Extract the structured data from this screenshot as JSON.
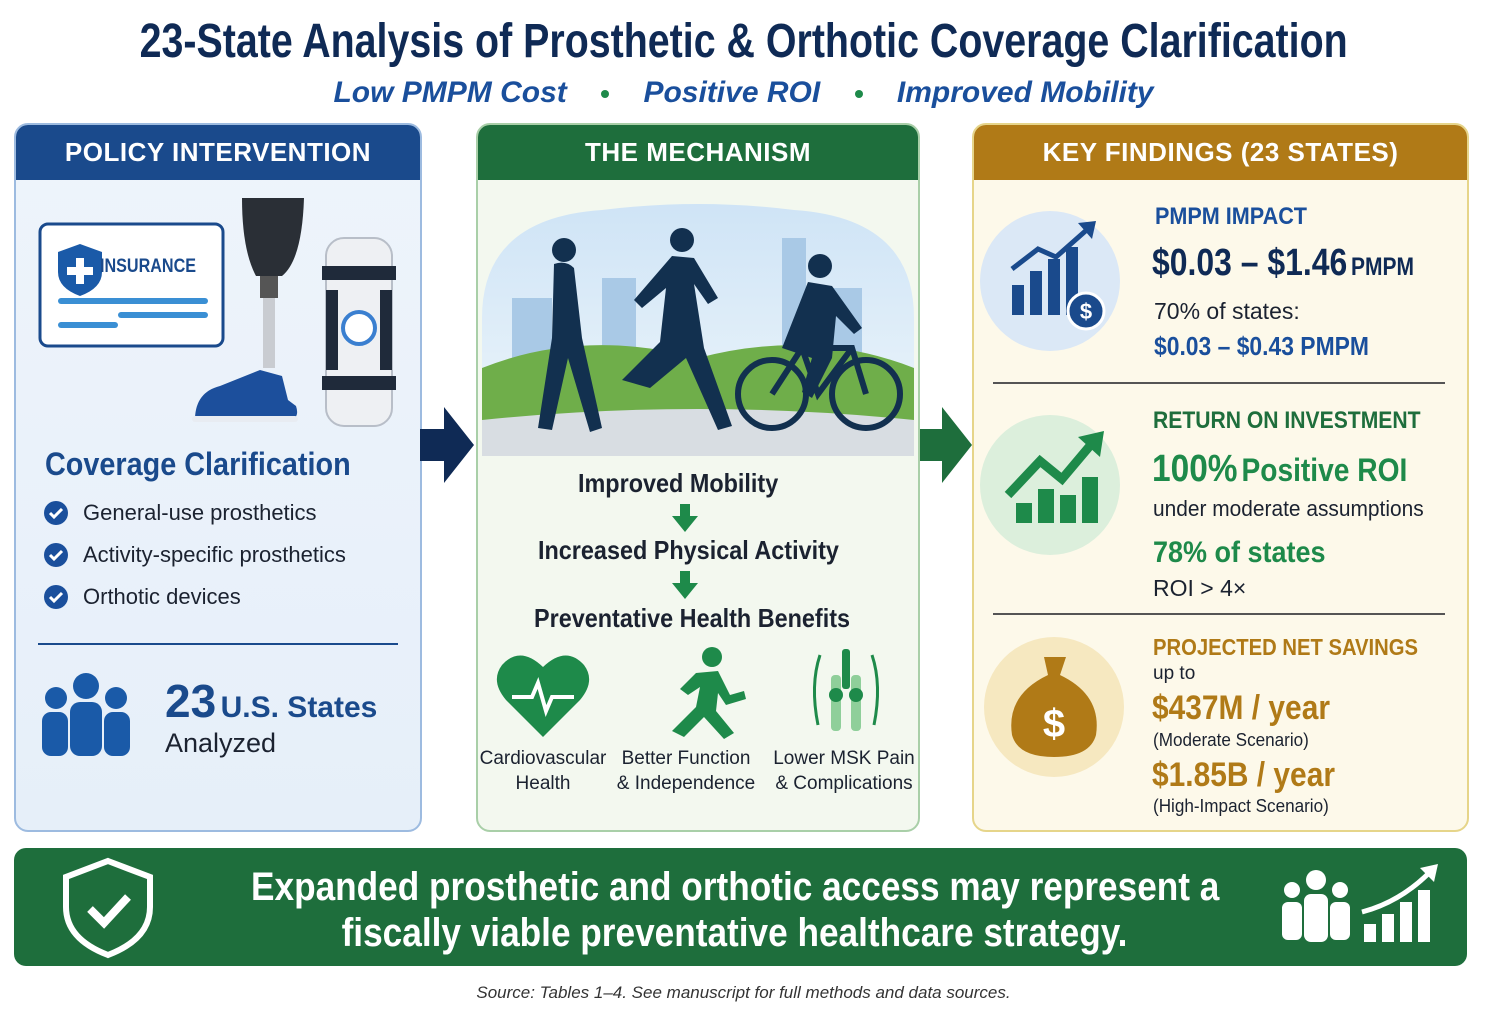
{
  "title": "23-State Analysis of Prosthetic & Orthotic Coverage Clarification",
  "subtitle": [
    "Low PMPM Cost",
    "Positive ROI",
    "Improved Mobility"
  ],
  "policy": {
    "header": "POLICY INTERVENTION",
    "card_label": "INSURANCE",
    "heading": "Coverage Clarification",
    "items": [
      "General-use prosthetics",
      "Activity-specific prosthetics",
      "Orthotic devices"
    ],
    "stat_number": "23",
    "stat_unit": "U.S. States",
    "stat_caption": "Analyzed"
  },
  "mechanism": {
    "header": "THE MECHANISM",
    "steps": [
      "Improved Mobility",
      "Increased Physical Activity",
      "Preventative Health Benefits"
    ],
    "benefits": [
      [
        "Cardiovascular",
        "Health"
      ],
      [
        "Better Function",
        "& Independence"
      ],
      [
        "Lower MSK Pain",
        "& Complications"
      ]
    ]
  },
  "findings": {
    "header": "KEY FINDINGS (23 STATES)",
    "pmpm": {
      "label": "PMPM IMPACT",
      "range": "$0.03 – $1.46",
      "unit": "PMPM",
      "note": "70% of states:",
      "subrange": "$0.03 – $0.43 PMPM"
    },
    "roi": {
      "label": "RETURN ON INVESTMENT",
      "share": "100%",
      "headline": "Positive ROI",
      "note": "under moderate assumptions",
      "states": "78% of states",
      "threshold": "ROI > 4×"
    },
    "savings": {
      "label": "PROJECTED NET SAVINGS",
      "prefix": "up to",
      "moderate": "$437M / year",
      "moderate_note": "(Moderate Scenario)",
      "high": "$1.85B / year",
      "high_note": "(High-Impact Scenario)"
    }
  },
  "conclusion": [
    "Expanded prosthetic and orthotic access may represent a",
    "fiscally viable preventative healthcare strategy."
  ],
  "source": "Source: Tables 1–4. See manuscript for full methods and data sources."
}
